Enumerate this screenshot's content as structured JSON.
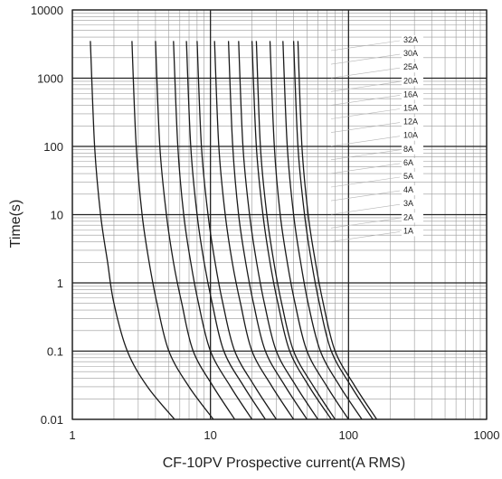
{
  "chart_data": {
    "type": "line",
    "title": "",
    "xlabel": "CF-10PV Prospective current(A RMS)",
    "ylabel": "Time(s)",
    "xscale": "log",
    "yscale": "log",
    "xlim": [
      1,
      1000
    ],
    "ylim": [
      0.01,
      10000
    ],
    "grid": true,
    "legend_placement": "labels beside curves, upper right",
    "x_ticks": [
      "1",
      "10",
      "100",
      "1000"
    ],
    "y_ticks": [
      "0.01",
      "0.1",
      "1",
      "10",
      "100",
      "1000",
      "10000"
    ],
    "series_labels": [
      "32A",
      "30A",
      "25A",
      "20A",
      "16A",
      "15A",
      "12A",
      "10A",
      "8A",
      "6A",
      "5A",
      "4A",
      "3A",
      "2A",
      "1A"
    ],
    "series": [
      {
        "name": "1A",
        "points": [
          [
            1.35,
            3500
          ],
          [
            1.45,
            100
          ],
          [
            1.6,
            10
          ],
          [
            1.8,
            2
          ],
          [
            2.0,
            0.5
          ],
          [
            2.5,
            0.1
          ],
          [
            3.5,
            0.03
          ],
          [
            5.5,
            0.01
          ]
        ]
      },
      {
        "name": "2A",
        "points": [
          [
            2.7,
            3500
          ],
          [
            2.9,
            100
          ],
          [
            3.2,
            10
          ],
          [
            3.6,
            2
          ],
          [
            4.1,
            0.5
          ],
          [
            5.0,
            0.1
          ],
          [
            7.0,
            0.03
          ],
          [
            10.5,
            0.01
          ]
        ]
      },
      {
        "name": "3A",
        "points": [
          [
            4.0,
            3500
          ],
          [
            4.3,
            100
          ],
          [
            4.8,
            10
          ],
          [
            5.4,
            2
          ],
          [
            6.2,
            0.5
          ],
          [
            7.5,
            0.1
          ],
          [
            10.5,
            0.03
          ],
          [
            15,
            0.01
          ]
        ]
      },
      {
        "name": "4A",
        "points": [
          [
            5.4,
            3500
          ],
          [
            5.8,
            100
          ],
          [
            6.4,
            10
          ],
          [
            7.2,
            2
          ],
          [
            8.2,
            0.5
          ],
          [
            10,
            0.1
          ],
          [
            14,
            0.03
          ],
          [
            20,
            0.01
          ]
        ]
      },
      {
        "name": "5A",
        "points": [
          [
            6.7,
            3500
          ],
          [
            7.2,
            100
          ],
          [
            8.0,
            10
          ],
          [
            9.0,
            2
          ],
          [
            10.3,
            0.5
          ],
          [
            12.5,
            0.1
          ],
          [
            17.5,
            0.03
          ],
          [
            25,
            0.01
          ]
        ]
      },
      {
        "name": "6A",
        "points": [
          [
            8.0,
            3500
          ],
          [
            8.6,
            100
          ],
          [
            9.6,
            10
          ],
          [
            10.8,
            2
          ],
          [
            12.3,
            0.5
          ],
          [
            15,
            0.1
          ],
          [
            21,
            0.03
          ],
          [
            30,
            0.01
          ]
        ]
      },
      {
        "name": "8A",
        "points": [
          [
            10.7,
            3500
          ],
          [
            11.5,
            100
          ],
          [
            12.8,
            10
          ],
          [
            14.4,
            2
          ],
          [
            16.5,
            0.5
          ],
          [
            20,
            0.1
          ],
          [
            28,
            0.03
          ],
          [
            40,
            0.01
          ]
        ]
      },
      {
        "name": "10A",
        "points": [
          [
            13.5,
            3500
          ],
          [
            14.5,
            100
          ],
          [
            16,
            10
          ],
          [
            18,
            2
          ],
          [
            20.5,
            0.5
          ],
          [
            25,
            0.1
          ],
          [
            35,
            0.03
          ],
          [
            50,
            0.01
          ]
        ]
      },
      {
        "name": "12A",
        "points": [
          [
            16,
            3500
          ],
          [
            17.2,
            100
          ],
          [
            19.2,
            10
          ],
          [
            21.6,
            2
          ],
          [
            24.6,
            0.5
          ],
          [
            30,
            0.1
          ],
          [
            42,
            0.03
          ],
          [
            60,
            0.01
          ]
        ]
      },
      {
        "name": "15A",
        "points": [
          [
            20,
            3500
          ],
          [
            21.5,
            100
          ],
          [
            24,
            10
          ],
          [
            27,
            2
          ],
          [
            30.8,
            0.5
          ],
          [
            37.5,
            0.1
          ],
          [
            52,
            0.03
          ],
          [
            75,
            0.01
          ]
        ]
      },
      {
        "name": "16A",
        "points": [
          [
            21.5,
            3500
          ],
          [
            23,
            100
          ],
          [
            25.6,
            10
          ],
          [
            28.8,
            2
          ],
          [
            32.8,
            0.5
          ],
          [
            40,
            0.1
          ],
          [
            56,
            0.03
          ],
          [
            80,
            0.01
          ]
        ]
      },
      {
        "name": "20A",
        "points": [
          [
            27,
            3500
          ],
          [
            29,
            100
          ],
          [
            32,
            10
          ],
          [
            36,
            2
          ],
          [
            41,
            0.5
          ],
          [
            50,
            0.1
          ],
          [
            70,
            0.03
          ],
          [
            100,
            0.01
          ]
        ]
      },
      {
        "name": "25A",
        "points": [
          [
            33.5,
            3500
          ],
          [
            36,
            100
          ],
          [
            40,
            10
          ],
          [
            45,
            2
          ],
          [
            51,
            0.5
          ],
          [
            62.5,
            0.1
          ],
          [
            87,
            0.03
          ],
          [
            125,
            0.01
          ]
        ]
      },
      {
        "name": "30A",
        "points": [
          [
            40,
            3500
          ],
          [
            43,
            100
          ],
          [
            48,
            10
          ],
          [
            54,
            2
          ],
          [
            61.5,
            0.5
          ],
          [
            75,
            0.1
          ],
          [
            105,
            0.03
          ],
          [
            150,
            0.01
          ]
        ]
      },
      {
        "name": "32A",
        "points": [
          [
            43,
            3500
          ],
          [
            46,
            100
          ],
          [
            51,
            10
          ],
          [
            57.6,
            2
          ],
          [
            65.6,
            0.5
          ],
          [
            80,
            0.1
          ],
          [
            112,
            0.03
          ],
          [
            160,
            0.01
          ]
        ]
      }
    ]
  }
}
